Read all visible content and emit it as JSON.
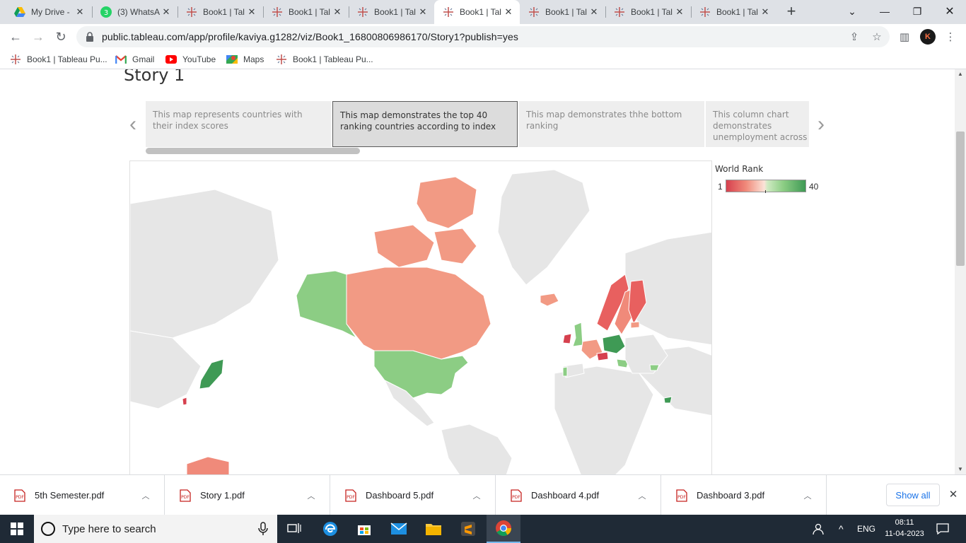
{
  "browser": {
    "tabs": [
      {
        "title": "My Drive -",
        "icon": "google-drive-icon"
      },
      {
        "title": "(3) WhatsA",
        "icon": "whatsapp-icon"
      },
      {
        "title": "Book1 | Tal",
        "icon": "tableau-icon"
      },
      {
        "title": "Book1 | Tal",
        "icon": "tableau-icon"
      },
      {
        "title": "Book1 | Tal",
        "icon": "tableau-icon"
      },
      {
        "title": "Book1 | Tal",
        "icon": "tableau-icon",
        "active": true
      },
      {
        "title": "Book1 | Tal",
        "icon": "tableau-icon"
      },
      {
        "title": "Book1 | Tal",
        "icon": "tableau-icon"
      },
      {
        "title": "Book1 | Tal",
        "icon": "tableau-icon"
      }
    ],
    "url": "public.tableau.com/app/profile/kaviya.g1282/viz/Book1_16800806986170/Story1?publish=yes",
    "avatar_letter": "K",
    "bookmarks": [
      {
        "label": "Book1 | Tableau Pu...",
        "icon": "tableau-icon"
      },
      {
        "label": "Gmail",
        "icon": "gmail-icon"
      },
      {
        "label": "YouTube",
        "icon": "youtube-icon"
      },
      {
        "label": "Maps",
        "icon": "maps-icon"
      },
      {
        "label": "Book1 | Tableau Pu...",
        "icon": "tableau-icon"
      }
    ]
  },
  "story": {
    "title": "Story 1",
    "points": [
      "This map represents countries with their index scores",
      "This map demonstrates the top 40 ranking countries according to index",
      "This map demonstrates thhe bottom ranking",
      "This column chart demonstrates unemployment across"
    ],
    "active_point": 1
  },
  "legend": {
    "title": "World Rank",
    "min": "1",
    "max": "40",
    "colors": {
      "low": "#d6404e",
      "mid": "#fbe3d8",
      "high": "#3f9a55"
    }
  },
  "downloads": {
    "items": [
      "5th Semester.pdf",
      "Story 1.pdf",
      "Dashboard 5.pdf",
      "Dashboard 4.pdf",
      "Dashboard 3.pdf"
    ],
    "show_all": "Show all"
  },
  "taskbar": {
    "search_placeholder": "Type here to search",
    "language": "ENG",
    "time": "08:11",
    "date": "11-04-2023"
  }
}
